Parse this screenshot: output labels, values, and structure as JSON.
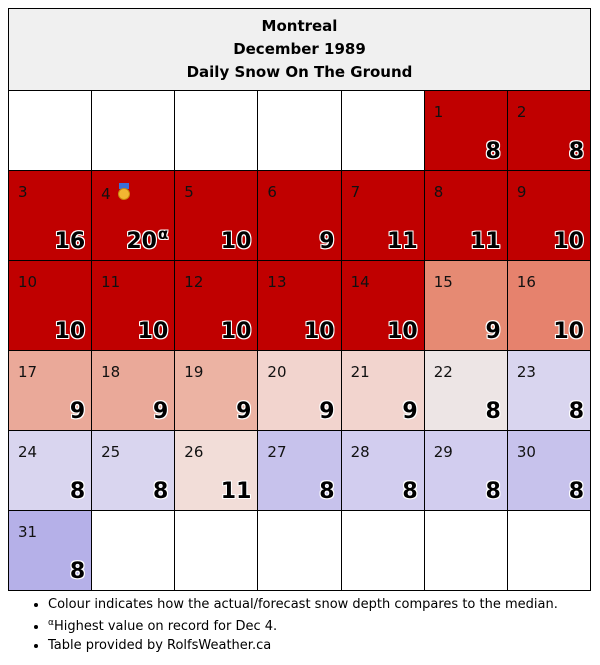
{
  "header": {
    "city": "Montreal",
    "month": "December 1989",
    "title": "Daily Snow On The Ground"
  },
  "days": [
    {
      "day": "1",
      "value": "8",
      "color": "#c00000"
    },
    {
      "day": "2",
      "value": "8",
      "color": "#c00000"
    },
    {
      "day": "3",
      "value": "16",
      "color": "#c00000"
    },
    {
      "day": "4",
      "value": "20",
      "sup": "α",
      "medal": true,
      "color": "#c00000"
    },
    {
      "day": "5",
      "value": "10",
      "color": "#c00000"
    },
    {
      "day": "6",
      "value": "9",
      "color": "#c00000"
    },
    {
      "day": "7",
      "value": "11",
      "color": "#c00000"
    },
    {
      "day": "8",
      "value": "11",
      "color": "#c00000"
    },
    {
      "day": "9",
      "value": "10",
      "color": "#c00000"
    },
    {
      "day": "10",
      "value": "10",
      "color": "#c00000"
    },
    {
      "day": "11",
      "value": "10",
      "color": "#c00000"
    },
    {
      "day": "12",
      "value": "10",
      "color": "#c00000"
    },
    {
      "day": "13",
      "value": "10",
      "color": "#c00000"
    },
    {
      "day": "14",
      "value": "10",
      "color": "#c00000"
    },
    {
      "day": "15",
      "value": "9",
      "color": "#e68a73"
    },
    {
      "day": "16",
      "value": "10",
      "color": "#e6826d"
    },
    {
      "day": "17",
      "value": "9",
      "color": "#eaa999"
    },
    {
      "day": "18",
      "value": "9",
      "color": "#eaa999"
    },
    {
      "day": "19",
      "value": "9",
      "color": "#ecb3a3"
    },
    {
      "day": "20",
      "value": "9",
      "color": "#f2d4ce"
    },
    {
      "day": "21",
      "value": "9",
      "color": "#f2d4ce"
    },
    {
      "day": "22",
      "value": "8",
      "color": "#ede5e5"
    },
    {
      "day": "23",
      "value": "8",
      "color": "#d9d5ef"
    },
    {
      "day": "24",
      "value": "8",
      "color": "#d9d5ef"
    },
    {
      "day": "25",
      "value": "8",
      "color": "#d9d5ef"
    },
    {
      "day": "26",
      "value": "11",
      "color": "#f2ddd8"
    },
    {
      "day": "27",
      "value": "8",
      "color": "#c7c2ec"
    },
    {
      "day": "28",
      "value": "8",
      "color": "#d2cdef"
    },
    {
      "day": "29",
      "value": "8",
      "color": "#d2cdef"
    },
    {
      "day": "30",
      "value": "8",
      "color": "#c7c2ec"
    },
    {
      "day": "31",
      "value": "8",
      "color": "#b5b0e8"
    }
  ],
  "notes": {
    "colour": "Colour indicates how the actual/forecast snow depth compares to the median.",
    "record_marker": "α",
    "record": "Highest value on record for Dec 4.",
    "credit": "Table provided by RolfsWeather.ca"
  }
}
